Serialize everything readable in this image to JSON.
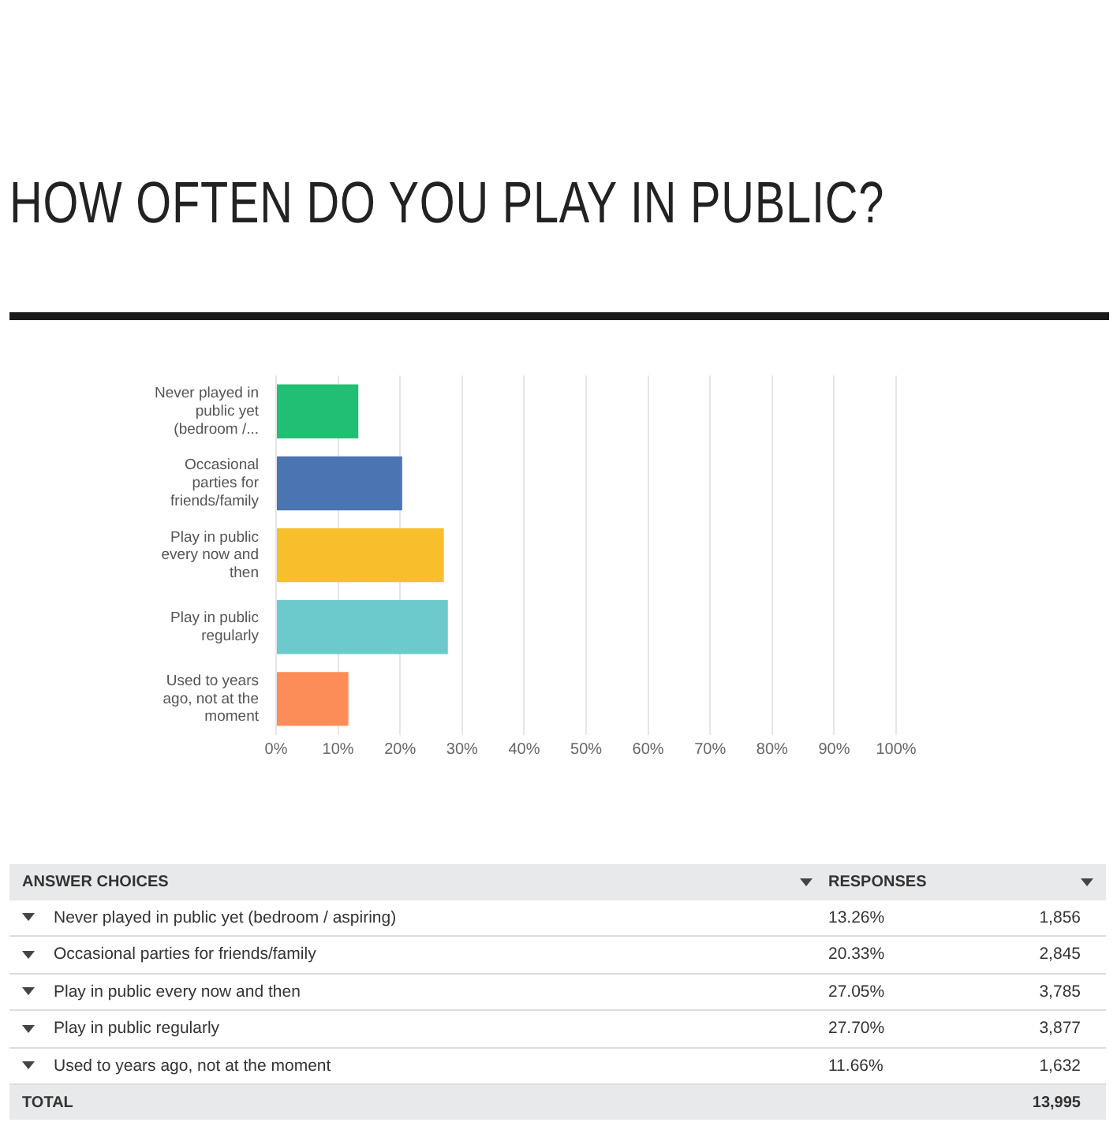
{
  "chart_data": {
    "type": "bar",
    "orientation": "horizontal",
    "title": "HOW OFTEN DO YOU PLAY IN PUBLIC?",
    "categories": [
      "Never played in public yet (bedroom /...",
      "Occasional parties for friends/family",
      "Play in public every now and then",
      "Play in public regularly",
      "Used to years ago, not at the moment"
    ],
    "values": [
      13.26,
      20.33,
      27.05,
      27.7,
      11.66
    ],
    "colors": [
      "#21bf73",
      "#4b74b3",
      "#f7bf2b",
      "#6cc9cc",
      "#fd8d58"
    ],
    "xlim": [
      0,
      100
    ],
    "xticks": [
      {
        "value": 0,
        "label": "0%"
      },
      {
        "value": 10,
        "label": "10%"
      },
      {
        "value": 20,
        "label": "20%"
      },
      {
        "value": 30,
        "label": "30%"
      },
      {
        "value": 40,
        "label": "40%"
      },
      {
        "value": 50,
        "label": "50%"
      },
      {
        "value": 60,
        "label": "60%"
      },
      {
        "value": 70,
        "label": "70%"
      },
      {
        "value": 80,
        "label": "80%"
      },
      {
        "value": 90,
        "label": "90%"
      },
      {
        "value": 100,
        "label": "100%"
      }
    ],
    "grid": "x",
    "annotations": [
      "ANSWER CHOICES",
      "RESPONSES",
      "1,856",
      "2,845",
      "3,785",
      "3,877",
      "1,632",
      "TOTAL",
      "13,995",
      "Never played in public yet (bedroom / aspiring)",
      "13.26%",
      "20.33%",
      "27.05%",
      "27.70%",
      "11.66%"
    ]
  }
}
